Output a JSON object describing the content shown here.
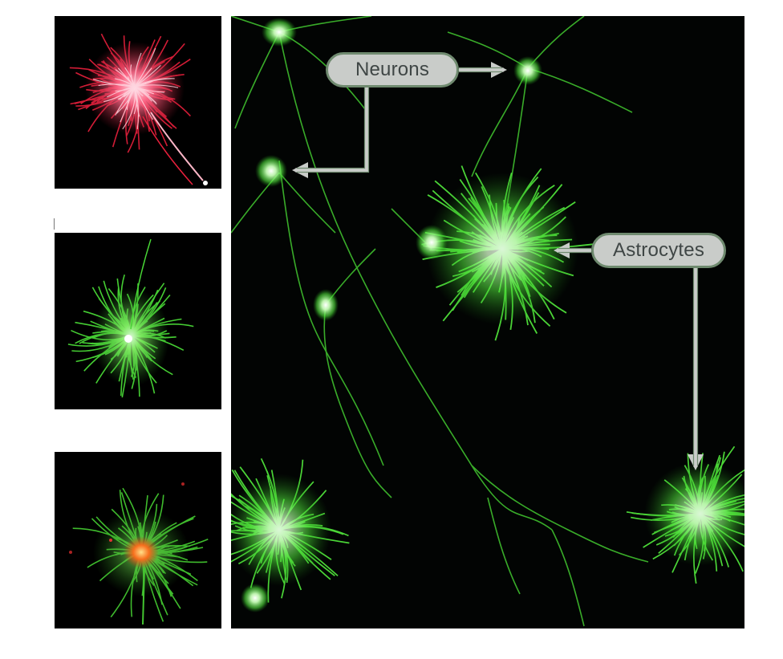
{
  "labels": {
    "neurons": "Neurons",
    "astrocytes": "Astrocytes"
  },
  "colors": {
    "background": "#ffffff",
    "panel_background": "#000000",
    "green_stain": "#4fe13a",
    "red_stain": "#e8203c",
    "callout_fill": "#c9ccc9",
    "callout_border": "#6f8a6f",
    "callout_text": "#3f4645",
    "arrow": "#c9ccc9"
  },
  "panels": [
    {
      "name": "astrocyte-red-stain",
      "stain": "red"
    },
    {
      "name": "astrocyte-green-stain",
      "stain": "green"
    },
    {
      "name": "astrocyte-merged-stain",
      "stain": "green+red"
    },
    {
      "name": "neuron-astrocyte-culture",
      "stain": "green"
    }
  ]
}
